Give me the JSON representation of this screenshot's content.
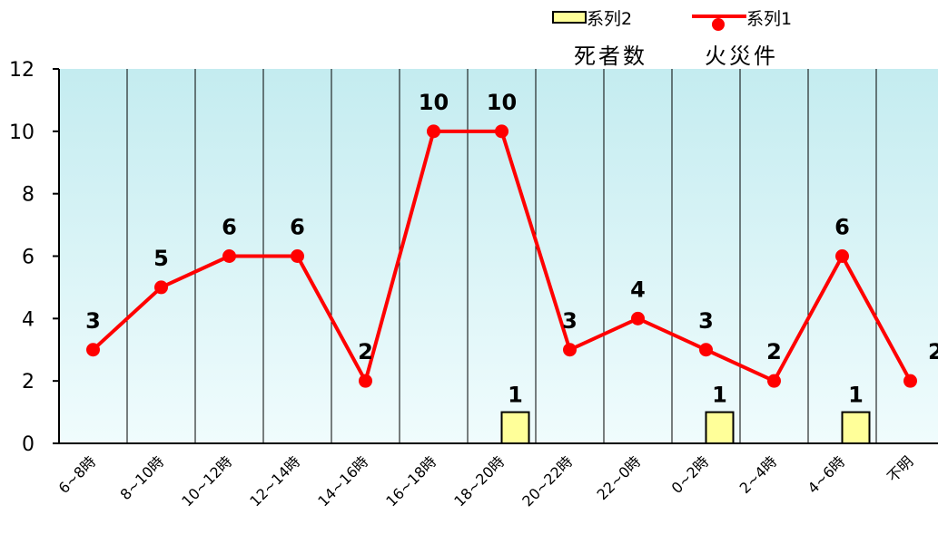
{
  "legend": {
    "series2_label": "系列2",
    "series1_label": "系列1",
    "header_left": "死者数",
    "header_right": "火災件"
  },
  "colors": {
    "plot_top": "#c4ecf0",
    "plot_bottom": "#f0fcfd",
    "line": "#ff0000",
    "bar_fill": "#ffff99",
    "bar_stroke": "#000000",
    "axis": "#000000"
  },
  "chart_data": {
    "type": "bar+line",
    "categories": [
      "6~8時",
      "8~10時",
      "10~12時",
      "12~14時",
      "14~16時",
      "16~18時",
      "18~20時",
      "20~22時",
      "22~0時",
      "0~2時",
      "2~4時",
      "4~6時",
      "不明"
    ],
    "series": [
      {
        "name": "系列2",
        "type": "bar",
        "values": [
          0,
          0,
          0,
          0,
          0,
          0,
          1,
          0,
          0,
          1,
          0,
          1,
          0
        ],
        "labels_shown_for": [
          6,
          9,
          11
        ]
      },
      {
        "name": "系列1",
        "type": "line",
        "values": [
          3,
          5,
          6,
          6,
          2,
          10,
          10,
          3,
          4,
          3,
          2,
          6,
          2
        ]
      }
    ],
    "ylim": [
      0,
      12
    ],
    "yticks": [
      0,
      2,
      4,
      6,
      8,
      10,
      12
    ],
    "grid": "vertical lines between categories",
    "legend_position": "top-right",
    "title": "",
    "xlabel": "",
    "ylabel": ""
  }
}
